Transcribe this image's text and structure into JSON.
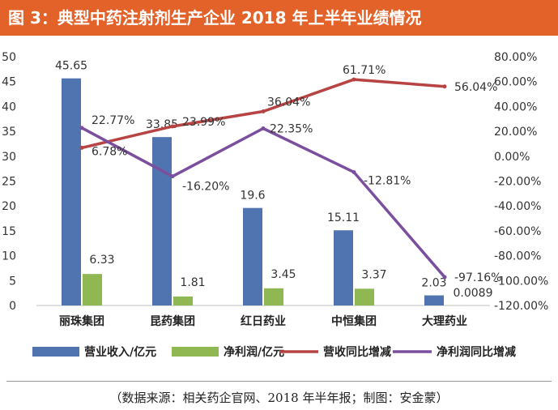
{
  "figure": {
    "title": "图 3：典型中药注射剂生产企业 2018 年上半年业绩情况",
    "source": "（数据来源：相关药企官网、2018 年半年报；制图：安金蒙）"
  },
  "chart_data": {
    "type": "bar",
    "categories": [
      "丽珠集团",
      "昆药集团",
      "红日药业",
      "中恒集团",
      "大理药业"
    ],
    "series": [
      {
        "name": "营业收入/亿元",
        "type": "bar",
        "axis": "left",
        "values": [
          45.65,
          33.85,
          19.6,
          15.11,
          2.03
        ],
        "labels": [
          "45.65",
          "33.85",
          "19.6",
          "15.11",
          "2.03"
        ],
        "color": "#4f74b0"
      },
      {
        "name": "净利润/亿元",
        "type": "bar",
        "axis": "left",
        "values": [
          6.33,
          1.81,
          3.45,
          3.37,
          0.0089
        ],
        "labels": [
          "6.33",
          "1.81",
          "3.45",
          "3.37",
          "0.0089"
        ],
        "color": "#8fb852"
      },
      {
        "name": "营收同比增减",
        "type": "line",
        "axis": "right",
        "values": [
          6.78,
          23.99,
          36.04,
          61.71,
          56.04
        ],
        "labels": [
          "6.78%",
          "23.99%",
          "36.04%",
          "61.71%",
          "56.04%"
        ],
        "color": "#b84343"
      },
      {
        "name": "净利润同比增减",
        "type": "line",
        "axis": "right",
        "values": [
          22.77,
          -16.2,
          22.35,
          -12.81,
          -97.16
        ],
        "labels": [
          "22.77%",
          "-16.20%",
          "22.35%",
          "-12.81%",
          "-97.16%"
        ],
        "color": "#7b4f9e"
      }
    ],
    "ylim_left": [
      0,
      50
    ],
    "yticks_left": [
      "0",
      "5",
      "10",
      "15",
      "20",
      "25",
      "30",
      "35",
      "40",
      "45",
      "50"
    ],
    "ylim_right": [
      -120,
      80
    ],
    "yticks_right": [
      "-120.00%",
      "-100.00%",
      "-80.00%",
      "-60.00%",
      "-40.00%",
      "-20.00%",
      "0.00%",
      "20.00%",
      "40.00%",
      "60.00%",
      "80.00%"
    ],
    "grid": false,
    "legend_position": "bottom"
  }
}
